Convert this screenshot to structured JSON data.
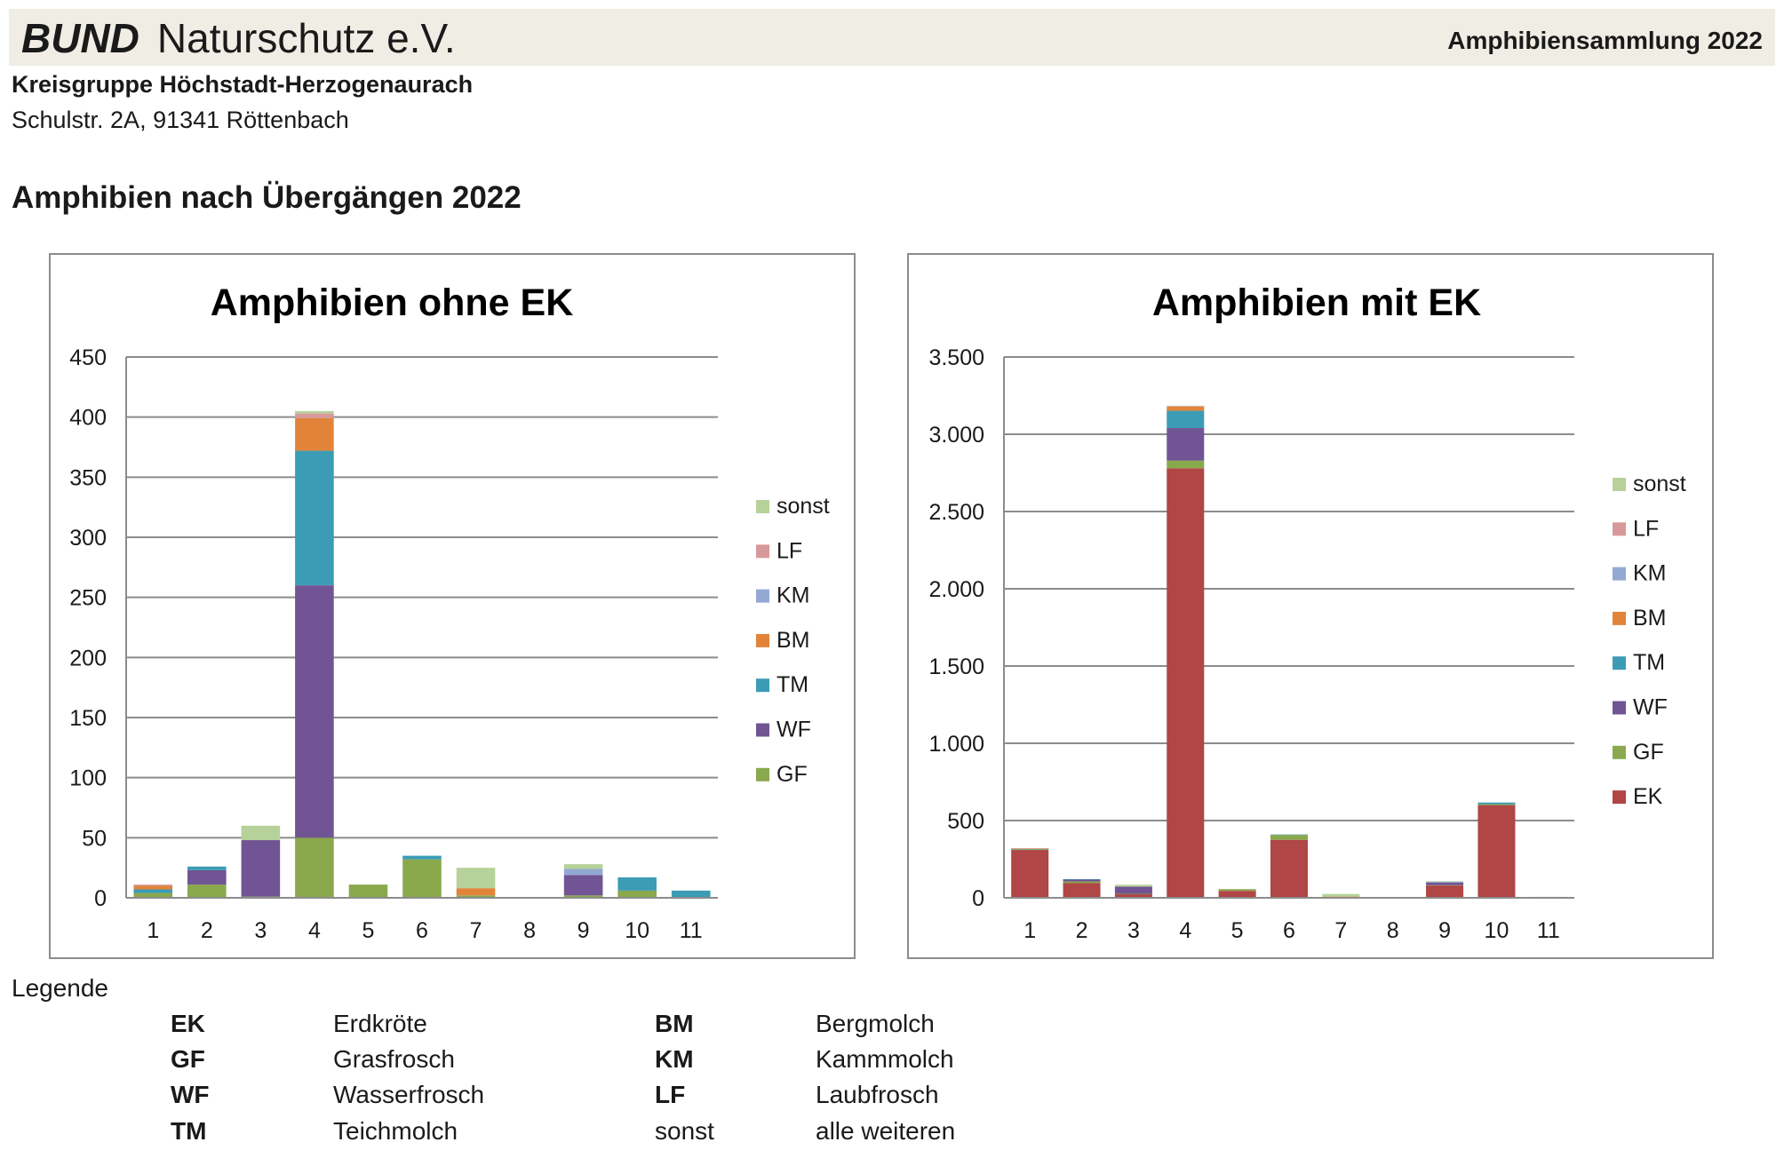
{
  "header": {
    "brand_bold": "BUND",
    "brand_rest": "Naturschutz e.V.",
    "doc_title": "Amphibiensammlung 2022"
  },
  "org": {
    "name": "Kreisgruppe Höchstadt-Herzogenaurach",
    "address": "Schulstr. 2A, 91341 Röttenbach"
  },
  "section_title": "Amphibien nach Übergängen 2022",
  "colors": {
    "EK": "#b04645",
    "GF": "#8aa84c",
    "WF": "#715493",
    "TM": "#3c9cb5",
    "BM": "#e1843a",
    "KM": "#93a9d3",
    "LF": "#d8999a",
    "sonst": "#b6d29a"
  },
  "chart_data": [
    {
      "type": "bar",
      "stacked": true,
      "title": "Amphibien ohne EK",
      "categories": [
        "1",
        "2",
        "3",
        "4",
        "5",
        "6",
        "7",
        "8",
        "9",
        "10",
        "11"
      ],
      "ylim": [
        0,
        450
      ],
      "yticks": [
        0,
        50,
        100,
        150,
        200,
        250,
        300,
        350,
        400,
        450
      ],
      "ytick_labels": [
        "0",
        "50",
        "100",
        "150",
        "200",
        "250",
        "300",
        "350",
        "400",
        "450"
      ],
      "grid": true,
      "legend_position": "right",
      "legend": [
        "sonst",
        "LF",
        "KM",
        "BM",
        "TM",
        "WF",
        "GF"
      ],
      "series": [
        {
          "name": "GF",
          "values": [
            4,
            11,
            1,
            50,
            11,
            32,
            2,
            0,
            2,
            6,
            0
          ]
        },
        {
          "name": "WF",
          "values": [
            0,
            12,
            47,
            210,
            0,
            0,
            0,
            0,
            17,
            0,
            0
          ]
        },
        {
          "name": "TM",
          "values": [
            3,
            3,
            0,
            112,
            0,
            3,
            0,
            0,
            0,
            11,
            6
          ]
        },
        {
          "name": "BM",
          "values": [
            3,
            0,
            0,
            27,
            0,
            0,
            6,
            0,
            0,
            0,
            0
          ]
        },
        {
          "name": "KM",
          "values": [
            0,
            0,
            0,
            0,
            0,
            0,
            0,
            0,
            5,
            0,
            0
          ]
        },
        {
          "name": "LF",
          "values": [
            1,
            0,
            0,
            4,
            0,
            0,
            0,
            0,
            0,
            0,
            0
          ]
        },
        {
          "name": "sonst",
          "values": [
            0,
            0,
            12,
            2,
            0,
            0,
            17,
            0,
            4,
            0,
            0
          ]
        }
      ]
    },
    {
      "type": "bar",
      "stacked": true,
      "title": "Amphibien mit EK",
      "categories": [
        "1",
        "2",
        "3",
        "4",
        "5",
        "6",
        "7",
        "8",
        "9",
        "10",
        "11"
      ],
      "ylim": [
        0,
        3500
      ],
      "yticks": [
        0,
        500,
        1000,
        1500,
        2000,
        2500,
        3000,
        3500
      ],
      "ytick_labels": [
        "0",
        "500",
        "1.000",
        "1.500",
        "2.000",
        "2.500",
        "3.000",
        "3.500"
      ],
      "grid": true,
      "legend_position": "right",
      "legend": [
        "sonst",
        "LF",
        "KM",
        "BM",
        "TM",
        "WF",
        "GF",
        "EK"
      ],
      "series": [
        {
          "name": "EK",
          "values": [
            310,
            95,
            25,
            2780,
            45,
            375,
            0,
            0,
            80,
            600,
            0
          ]
        },
        {
          "name": "GF",
          "values": [
            4,
            11,
            1,
            50,
            11,
            32,
            2,
            0,
            2,
            6,
            0
          ]
        },
        {
          "name": "WF",
          "values": [
            0,
            12,
            47,
            210,
            0,
            0,
            0,
            0,
            17,
            0,
            0
          ]
        },
        {
          "name": "TM",
          "values": [
            3,
            3,
            0,
            112,
            0,
            3,
            0,
            0,
            0,
            11,
            6
          ]
        },
        {
          "name": "BM",
          "values": [
            3,
            0,
            0,
            27,
            0,
            0,
            6,
            0,
            0,
            0,
            0
          ]
        },
        {
          "name": "KM",
          "values": [
            0,
            0,
            0,
            0,
            0,
            0,
            0,
            0,
            5,
            0,
            0
          ]
        },
        {
          "name": "LF",
          "values": [
            1,
            0,
            0,
            4,
            0,
            0,
            0,
            0,
            0,
            0,
            0
          ]
        },
        {
          "name": "sonst",
          "values": [
            0,
            0,
            12,
            2,
            0,
            0,
            17,
            0,
            4,
            0,
            0
          ]
        }
      ]
    }
  ],
  "legend": {
    "title": "Legende",
    "entries": [
      {
        "abbr": "EK",
        "name": "Erdkröte"
      },
      {
        "abbr": "GF",
        "name": "Grasfrosch"
      },
      {
        "abbr": "WF",
        "name": "Wasserfrosch"
      },
      {
        "abbr": "TM",
        "name": "Teichmolch"
      },
      {
        "abbr": "BM",
        "name": "Bergmolch"
      },
      {
        "abbr": "KM",
        "name": "Kammmolch"
      },
      {
        "abbr": "LF",
        "name": "Laubfrosch"
      },
      {
        "abbr": "sonst",
        "name": "alle weiteren"
      }
    ]
  }
}
